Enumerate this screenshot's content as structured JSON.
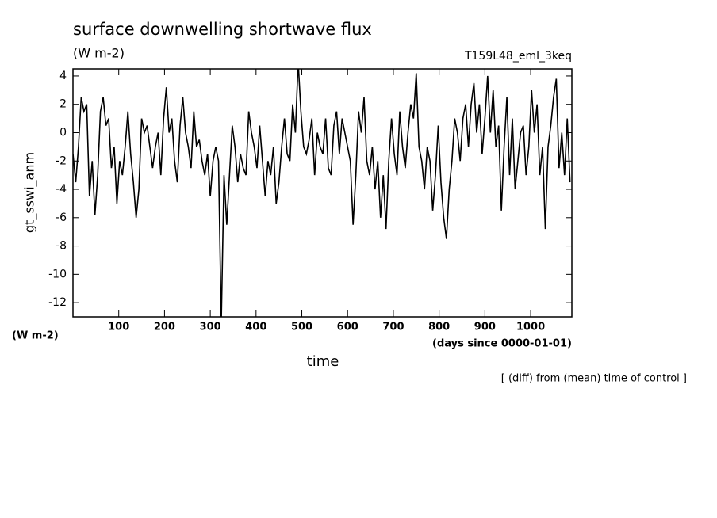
{
  "chart_data": {
    "type": "line",
    "title": "surface downwelling shortwave flux",
    "subtitle": "(W m-2)",
    "run_label": "T159L48_eml_3keq",
    "y_label": "gt_sswi_anm",
    "y_units": "(W m-2)",
    "x_label": "time",
    "x_units": "(days since 0000-01-01)",
    "note": "[ (diff) from (mean) time of control ]",
    "color": "#000000",
    "xlim": [
      0,
      1090
    ],
    "ylim": [
      -13,
      4.5
    ],
    "xticks": [
      100,
      200,
      300,
      400,
      500,
      600,
      700,
      800,
      900,
      1000
    ],
    "yticks": [
      -12,
      -10,
      -8,
      -6,
      -4,
      -2,
      0,
      2,
      4
    ],
    "x": [
      0,
      6,
      12,
      18,
      24,
      30,
      36,
      42,
      48,
      54,
      60,
      66,
      72,
      78,
      84,
      90,
      96,
      102,
      108,
      114,
      120,
      126,
      132,
      138,
      144,
      150,
      156,
      162,
      168,
      174,
      180,
      186,
      192,
      198,
      204,
      210,
      216,
      222,
      228,
      234,
      240,
      246,
      252,
      258,
      264,
      270,
      276,
      282,
      288,
      294,
      300,
      306,
      312,
      318,
      324,
      330,
      336,
      342,
      348,
      354,
      360,
      366,
      372,
      378,
      384,
      390,
      396,
      402,
      408,
      414,
      420,
      426,
      432,
      438,
      444,
      450,
      456,
      462,
      468,
      474,
      480,
      486,
      492,
      498,
      504,
      510,
      516,
      522,
      528,
      534,
      540,
      546,
      552,
      558,
      564,
      570,
      576,
      582,
      588,
      594,
      600,
      606,
      612,
      618,
      624,
      630,
      636,
      642,
      648,
      654,
      660,
      666,
      672,
      678,
      684,
      690,
      696,
      702,
      708,
      714,
      720,
      726,
      732,
      738,
      744,
      750,
      756,
      762,
      768,
      774,
      780,
      786,
      792,
      798,
      804,
      810,
      816,
      822,
      828,
      834,
      840,
      846,
      852,
      858,
      864,
      870,
      876,
      882,
      888,
      894,
      900,
      906,
      912,
      918,
      924,
      930,
      936,
      942,
      948,
      954,
      960,
      966,
      972,
      978,
      984,
      990,
      996,
      1002,
      1008,
      1014,
      1020,
      1026,
      1032,
      1038,
      1044,
      1050,
      1056,
      1062,
      1068,
      1074,
      1080,
      1086
    ],
    "values": [
      -1.5,
      -3.5,
      -1,
      2.5,
      1.5,
      2,
      -4.5,
      -2,
      -5.8,
      -3,
      1.5,
      2.5,
      0.5,
      1,
      -2.5,
      -1,
      -5,
      -2,
      -3,
      -1,
      1.5,
      -1.5,
      -3.5,
      -6,
      -4,
      1,
      0,
      0.5,
      -1,
      -2.5,
      -1,
      0,
      -3,
      1,
      3.2,
      0,
      1,
      -2,
      -3.5,
      0.5,
      2.5,
      0,
      -1,
      -2.5,
      1.5,
      -1,
      -0.5,
      -2,
      -3,
      -1.5,
      -4.5,
      -2,
      -1,
      -2,
      -13.5,
      -3,
      -6.5,
      -3,
      0.5,
      -1,
      -3.5,
      -1.5,
      -2.5,
      -3,
      1.5,
      0,
      -1,
      -2.5,
      0.5,
      -2,
      -4.5,
      -2,
      -3,
      -1,
      -5,
      -3.5,
      -1,
      1,
      -1.5,
      -2,
      2,
      0,
      5,
      1.5,
      -1,
      -1.5,
      -0.5,
      1,
      -3,
      0,
      -1,
      -1.5,
      1,
      -2.5,
      -3,
      0.5,
      1.5,
      -1.5,
      1,
      0,
      -1,
      -2,
      -6.5,
      -3,
      1.5,
      0,
      2.5,
      -2,
      -3,
      -1,
      -4,
      -2,
      -6,
      -3,
      -6.8,
      -2,
      1,
      -1.5,
      -3,
      1.5,
      -1,
      -2.5,
      0,
      2,
      1,
      4.2,
      -1,
      -2,
      -4,
      -1,
      -2,
      -5.5,
      -3,
      0.5,
      -3.5,
      -6,
      -7.5,
      -4,
      -2,
      1,
      0,
      -2,
      1,
      2,
      -1,
      2,
      3.5,
      0,
      2,
      -1.5,
      1,
      4,
      0,
      3,
      -1,
      0.5,
      -5.5,
      -1,
      2.5,
      -3,
      1,
      -4,
      -2,
      0,
      0.5,
      -3,
      -1,
      3,
      0,
      2,
      -3,
      -1,
      -6.8,
      -1,
      0.5,
      2.5,
      3.8,
      -2.5,
      0,
      -3,
      1,
      -3.5
    ]
  }
}
